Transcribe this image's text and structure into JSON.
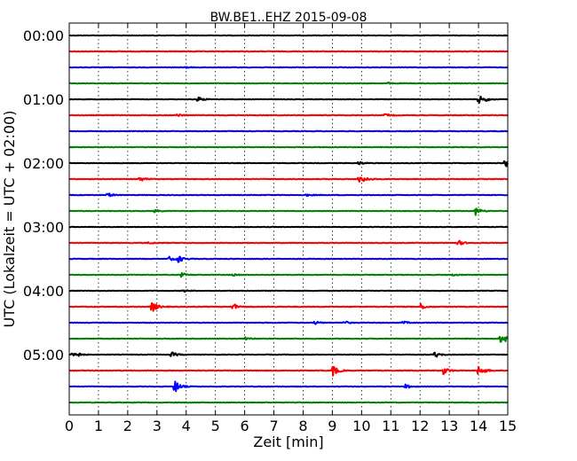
{
  "chart_data": {
    "type": "line",
    "title": "BW.BE1..EHZ 2015-09-08",
    "xlabel": "Zeit  [min]",
    "ylabel": "UTC (Lokalzeit = UTC + 02:00)",
    "xlim": [
      0,
      15
    ],
    "x_ticks": [
      "0",
      "1",
      "2",
      "3",
      "4",
      "5",
      "6",
      "7",
      "8",
      "9",
      "10",
      "11",
      "12",
      "13",
      "14",
      "15"
    ],
    "y_ticks": [
      "00:00",
      "01:00",
      "02:00",
      "03:00",
      "04:00",
      "05:00"
    ],
    "grid": "vertical dotted at each minute",
    "trace_interval_minutes": 15,
    "trace_count": 24,
    "trace_colors": [
      "#000000",
      "#ff0000",
      "#0000ff",
      "#008000"
    ],
    "traces": [
      {
        "start": "00:00",
        "events": []
      },
      {
        "start": "00:15",
        "events": []
      },
      {
        "start": "00:30",
        "events": [
          {
            "t": 3.9,
            "amp": 0.1
          }
        ]
      },
      {
        "start": "00:45",
        "events": [
          {
            "t": 10.9,
            "amp": 0.08
          }
        ]
      },
      {
        "start": "01:00",
        "events": [
          {
            "t": 4.4,
            "amp": 0.35
          },
          {
            "t": 14.0,
            "amp": 0.55
          },
          {
            "t": 14.2,
            "amp": 0.2
          }
        ]
      },
      {
        "start": "01:15",
        "events": [
          {
            "t": 3.7,
            "amp": 0.18
          },
          {
            "t": 10.8,
            "amp": 0.2
          }
        ]
      },
      {
        "start": "01:30",
        "events": []
      },
      {
        "start": "01:45",
        "events": []
      },
      {
        "start": "02:00",
        "events": [
          {
            "t": 9.9,
            "amp": 0.2
          },
          {
            "t": 14.9,
            "amp": 0.55
          }
        ]
      },
      {
        "start": "02:15",
        "events": [
          {
            "t": 2.4,
            "amp": 0.35
          },
          {
            "t": 9.9,
            "amp": 0.4
          },
          {
            "t": 10.1,
            "amp": 0.3
          }
        ]
      },
      {
        "start": "02:30",
        "events": [
          {
            "t": 1.3,
            "amp": 0.3
          },
          {
            "t": 8.1,
            "amp": 0.12
          }
        ]
      },
      {
        "start": "02:45",
        "events": [
          {
            "t": 2.9,
            "amp": 0.2
          },
          {
            "t": 13.9,
            "amp": 0.5
          }
        ]
      },
      {
        "start": "03:00",
        "events": []
      },
      {
        "start": "03:15",
        "events": [
          {
            "t": 2.7,
            "amp": 0.15
          },
          {
            "t": 13.3,
            "amp": 0.35
          }
        ]
      },
      {
        "start": "03:30",
        "events": [
          {
            "t": 3.4,
            "amp": 0.3
          },
          {
            "t": 3.7,
            "amp": 0.55
          }
        ]
      },
      {
        "start": "03:45",
        "events": [
          {
            "t": 3.8,
            "amp": 0.3
          },
          {
            "t": 5.6,
            "amp": 0.12
          },
          {
            "t": 13.1,
            "amp": 0.12
          }
        ]
      },
      {
        "start": "04:00",
        "events": [
          {
            "t": 3.9,
            "amp": 0.15
          }
        ]
      },
      {
        "start": "04:15",
        "events": [
          {
            "t": 2.8,
            "amp": 0.9
          },
          {
            "t": 5.6,
            "amp": 0.45
          },
          {
            "t": 12.0,
            "amp": 0.4
          }
        ]
      },
      {
        "start": "04:30",
        "events": [
          {
            "t": 8.4,
            "amp": 0.2
          },
          {
            "t": 9.4,
            "amp": 0.2
          },
          {
            "t": 11.4,
            "amp": 0.2
          }
        ]
      },
      {
        "start": "04:45",
        "events": [
          {
            "t": 6.0,
            "amp": 0.3
          },
          {
            "t": 14.7,
            "amp": 0.7
          },
          {
            "t": 14.9,
            "amp": 0.5
          }
        ]
      },
      {
        "start": "05:00",
        "events": [
          {
            "t": 0.1,
            "amp": 0.8
          },
          {
            "t": 3.5,
            "amp": 0.35
          },
          {
            "t": 12.5,
            "amp": 0.4
          }
        ]
      },
      {
        "start": "05:15",
        "events": [
          {
            "t": 9.0,
            "amp": 0.85
          },
          {
            "t": 12.8,
            "amp": 0.5
          },
          {
            "t": 14.0,
            "amp": 0.9
          }
        ]
      },
      {
        "start": "05:30",
        "events": [
          {
            "t": 3.6,
            "amp": 0.9
          },
          {
            "t": 11.5,
            "amp": 0.25
          }
        ]
      },
      {
        "start": "05:45",
        "events": []
      }
    ]
  }
}
